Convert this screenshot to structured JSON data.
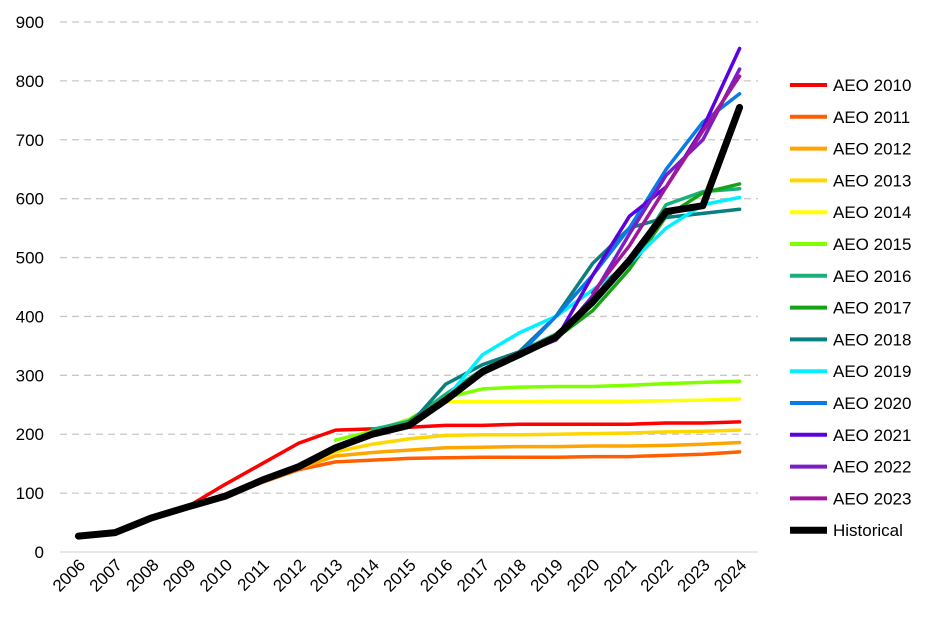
{
  "chart_data": {
    "type": "line",
    "title": "",
    "xlabel": "",
    "ylabel": "",
    "x": [
      2006,
      2007,
      2008,
      2009,
      2010,
      2011,
      2012,
      2013,
      2014,
      2015,
      2016,
      2017,
      2018,
      2019,
      2020,
      2021,
      2022,
      2023,
      2024
    ],
    "x_tick_labels": [
      "2006",
      "2007",
      "2008",
      "2009",
      "2010",
      "2011",
      "2012",
      "2013",
      "2014",
      "2015",
      "2016",
      "2017",
      "2018",
      "2019",
      "2020",
      "2021",
      "2022",
      "2023",
      "2024"
    ],
    "ylim": [
      0,
      900
    ],
    "y_ticks": [
      0,
      100,
      200,
      300,
      400,
      500,
      600,
      700,
      800,
      900
    ],
    "grid": "horizontal dashed",
    "legend_position": "right",
    "series": [
      {
        "name": "AEO 2010",
        "color": "#ff0000",
        "x": [
          2009,
          2010,
          2011,
          2012,
          2013,
          2014,
          2015,
          2016,
          2017,
          2018,
          2019,
          2020,
          2021,
          2022,
          2023,
          2024
        ],
        "values": [
          78,
          115,
          150,
          185,
          207,
          209,
          212,
          215,
          215,
          217,
          217,
          217,
          217,
          219,
          219,
          221
        ]
      },
      {
        "name": "AEO 2011",
        "color": "#ff5f00",
        "x": [
          2010,
          2011,
          2012,
          2013,
          2014,
          2015,
          2016,
          2017,
          2018,
          2019,
          2020,
          2021,
          2022,
          2023,
          2024
        ],
        "values": [
          95,
          118,
          140,
          153,
          156,
          159,
          160,
          161,
          161,
          161,
          162,
          162,
          164,
          166,
          170
        ]
      },
      {
        "name": "AEO 2012",
        "color": "#ffa500",
        "x": [
          2011,
          2012,
          2013,
          2014,
          2015,
          2016,
          2017,
          2018,
          2019,
          2020,
          2021,
          2022,
          2023,
          2024
        ],
        "values": [
          118,
          142,
          163,
          169,
          173,
          177,
          178,
          179,
          179,
          180,
          180,
          181,
          183,
          186
        ]
      },
      {
        "name": "AEO 2013",
        "color": "#ffd700",
        "x": [
          2012,
          2013,
          2014,
          2015,
          2016,
          2017,
          2018,
          2019,
          2020,
          2021,
          2022,
          2023,
          2024
        ],
        "values": [
          145,
          170,
          183,
          192,
          198,
          199,
          199,
          200,
          201,
          202,
          204,
          205,
          207
        ]
      },
      {
        "name": "AEO 2014",
        "color": "#ffff00",
        "x": [
          2013,
          2014,
          2015,
          2016,
          2017,
          2018,
          2019,
          2020,
          2021,
          2022,
          2023,
          2024
        ],
        "values": [
          178,
          198,
          222,
          255,
          255,
          255,
          256,
          256,
          256,
          257,
          258,
          260
        ]
      },
      {
        "name": "AEO 2015",
        "color": "#80ff00",
        "x": [
          2013,
          2014,
          2015,
          2016,
          2017,
          2018,
          2019,
          2020,
          2021,
          2022,
          2023,
          2024
        ],
        "values": [
          190,
          205,
          225,
          262,
          277,
          280,
          281,
          281,
          283,
          286,
          288,
          290
        ]
      },
      {
        "name": "AEO 2016",
        "color": "#19b07a",
        "x": [
          2014,
          2015,
          2016,
          2017,
          2018,
          2019,
          2020,
          2021,
          2022,
          2023,
          2024
        ],
        "values": [
          208,
          222,
          268,
          310,
          340,
          370,
          420,
          490,
          590,
          612,
          617
        ]
      },
      {
        "name": "AEO 2017",
        "color": "#16a316",
        "x": [
          2015,
          2016,
          2017,
          2018,
          2019,
          2020,
          2021,
          2022,
          2023,
          2024
        ],
        "values": [
          222,
          260,
          305,
          332,
          363,
          410,
          480,
          570,
          610,
          625
        ]
      },
      {
        "name": "AEO 2018",
        "color": "#0a7f7f",
        "x": [
          2015,
          2016,
          2017,
          2018,
          2019,
          2020,
          2021,
          2022,
          2023,
          2024
        ],
        "values": [
          215,
          285,
          318,
          340,
          400,
          490,
          550,
          568,
          575,
          582
        ]
      },
      {
        "name": "AEO 2019",
        "color": "#00f0ff",
        "x": [
          2016,
          2017,
          2018,
          2019,
          2020,
          2021,
          2022,
          2023,
          2024
        ],
        "values": [
          260,
          335,
          372,
          400,
          445,
          490,
          550,
          590,
          602
        ]
      },
      {
        "name": "AEO 2020",
        "color": "#0a7ae8",
        "x": [
          2017,
          2018,
          2019,
          2020,
          2021,
          2022,
          2023,
          2024
        ],
        "values": [
          310,
          335,
          400,
          470,
          550,
          650,
          730,
          778
        ]
      },
      {
        "name": "AEO 2021",
        "color": "#5b00e0",
        "x": [
          2018,
          2019,
          2020,
          2021,
          2022,
          2023,
          2024
        ],
        "values": [
          335,
          360,
          470,
          570,
          620,
          720,
          855
        ]
      },
      {
        "name": "AEO 2022",
        "color": "#7a1ec8",
        "x": [
          2019,
          2020,
          2021,
          2022,
          2023,
          2024
        ],
        "values": [
          360,
          435,
          540,
          640,
          700,
          820
        ]
      },
      {
        "name": "AEO 2023",
        "color": "#a0189a",
        "x": [
          2020,
          2021,
          2022,
          2023,
          2024
        ],
        "values": [
          440,
          520,
          620,
          715,
          808
        ]
      },
      {
        "name": "Historical",
        "color": "#000000",
        "x": [
          2006,
          2007,
          2008,
          2009,
          2010,
          2011,
          2012,
          2013,
          2014,
          2015,
          2016,
          2017,
          2018,
          2019,
          2020,
          2021,
          2022,
          2023,
          2024
        ],
        "values": [
          27,
          33,
          58,
          77,
          95,
          122,
          145,
          177,
          200,
          215,
          258,
          306,
          335,
          365,
          425,
          495,
          578,
          588,
          755
        ]
      }
    ]
  }
}
